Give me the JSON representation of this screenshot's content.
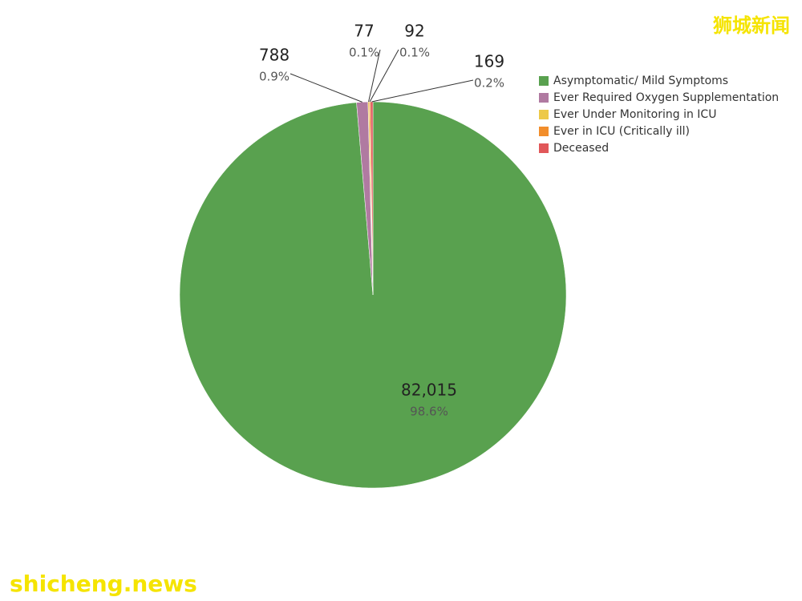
{
  "chart_data": {
    "type": "pie",
    "categories": [
      "Asymptomatic/ Mild Symptoms",
      "Ever Required Oxygen Supplementation",
      "Ever Under Monitoring in ICU",
      "Ever in ICU (Critically ill)",
      "Deceased"
    ],
    "values": [
      82015,
      788,
      77,
      92,
      169
    ],
    "value_labels": [
      "82,015",
      "788",
      "77",
      "92",
      "169"
    ],
    "percent_labels": [
      "98.6%",
      "0.9%",
      "0.1%",
      "0.1%",
      "0.2%"
    ],
    "colors": [
      "#59a14f",
      "#b07aa1",
      "#edc948",
      "#f28e2b",
      "#e15759"
    ],
    "legend": "top-right"
  },
  "watermarks": {
    "top": "狮城新闻",
    "bottom": "shicheng.news"
  }
}
